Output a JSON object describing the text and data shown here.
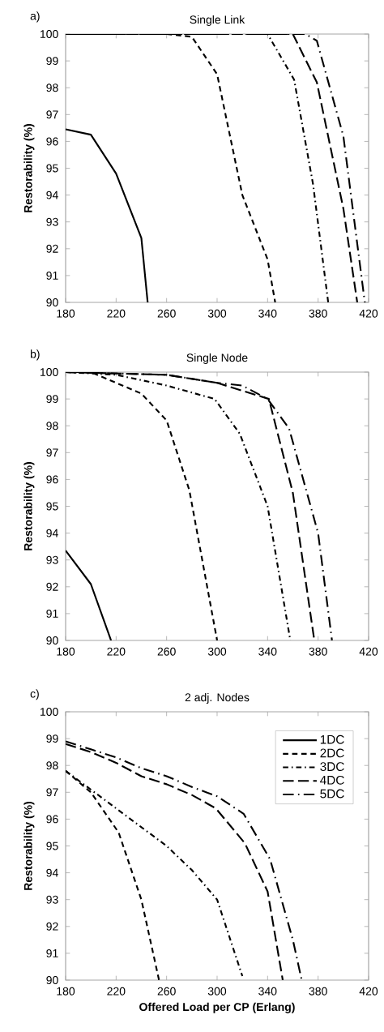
{
  "chart_data": [
    {
      "type": "line",
      "title": "Single Link",
      "ylabel": "Restorability (%)",
      "annotations": [
        "a)"
      ],
      "xlim": [
        180,
        420
      ],
      "ylim": [
        90,
        100
      ],
      "xticks": [
        180,
        220,
        260,
        300,
        340,
        380,
        420
      ],
      "yticks": [
        90,
        91,
        92,
        93,
        94,
        95,
        96,
        97,
        98,
        99,
        100
      ],
      "grid": false,
      "legend": false,
      "marker": "none",
      "series": [
        {
          "color": "#000000",
          "line_style": "solid",
          "x": [
            180,
            200,
            220,
            240,
            245
          ],
          "values": [
            96.45,
            96.25,
            94.8,
            92.4,
            90
          ]
        },
        {
          "color": "#000000",
          "line_style": "dashed",
          "x": [
            180,
            260,
            280,
            300,
            320,
            340,
            346
          ],
          "values": [
            100,
            100,
            99.9,
            98.5,
            94.0,
            91.6,
            90
          ]
        },
        {
          "color": "#000000",
          "line_style": "dashed",
          "x": [
            180,
            340,
            361,
            376,
            388
          ],
          "values": [
            100,
            100,
            98.3,
            94.4,
            90
          ]
        },
        {
          "color": "#000000",
          "line_style": "dashed",
          "x": [
            180,
            360,
            379,
            400,
            411
          ],
          "values": [
            100,
            100,
            98.2,
            93.5,
            90
          ]
        },
        {
          "color": "#000000",
          "line_style": "dashed",
          "x": [
            180,
            370,
            379,
            400,
            417
          ],
          "values": [
            100,
            100,
            99.75,
            96.2,
            90
          ]
        }
      ]
    },
    {
      "type": "line",
      "title": "Single Node",
      "ylabel": "Restorability (%)",
      "annotations": [
        "b)"
      ],
      "xlim": [
        180,
        420
      ],
      "ylim": [
        90,
        100
      ],
      "xticks": [
        180,
        220,
        260,
        300,
        340,
        380,
        420
      ],
      "yticks": [
        90,
        91,
        92,
        93,
        94,
        95,
        96,
        97,
        98,
        99,
        100
      ],
      "grid": false,
      "legend": false,
      "marker": "none",
      "series": [
        {
          "color": "#000000",
          "line_style": "solid",
          "x": [
            180,
            200,
            216
          ],
          "values": [
            93.35,
            92.1,
            90
          ]
        },
        {
          "color": "#000000",
          "line_style": "dashed",
          "x": [
            180,
            200,
            220,
            240,
            260,
            278,
            300
          ],
          "values": [
            100,
            100,
            99.6,
            99.2,
            98.2,
            95.6,
            90
          ]
        },
        {
          "color": "#000000",
          "line_style": "dashed",
          "x": [
            180,
            220,
            260,
            298,
            318,
            340,
            358
          ],
          "values": [
            100,
            99.9,
            99.5,
            99.0,
            97.7,
            95.0,
            90
          ]
        },
        {
          "color": "#000000",
          "line_style": "dashed",
          "x": [
            180,
            260,
            300,
            341,
            360,
            377
          ],
          "values": [
            100,
            99.9,
            99.6,
            99.0,
            95.5,
            90
          ]
        },
        {
          "color": "#000000",
          "line_style": "dashed",
          "x": [
            180,
            260,
            300,
            320,
            340,
            357,
            380,
            391
          ],
          "values": [
            100,
            99.9,
            99.6,
            99.5,
            99.0,
            97.9,
            94.0,
            90
          ]
        }
      ]
    },
    {
      "type": "line",
      "title": "2 adj. Nodes",
      "xlabel": "Offered Load per CP (Erlang)",
      "ylabel": "Restorability (%)",
      "annotations": [
        "c)"
      ],
      "xlim": [
        180,
        420
      ],
      "ylim": [
        90,
        100
      ],
      "xticks": [
        180,
        220,
        260,
        300,
        340,
        380,
        420
      ],
      "yticks": [
        90,
        91,
        92,
        93,
        94,
        95,
        96,
        97,
        98,
        99,
        100
      ],
      "grid": false,
      "legend": "top right",
      "marker": "none",
      "series": [
        {
          "name": "1DC",
          "color": "#000000",
          "line_style": "solid"
        },
        {
          "name": "2DC",
          "color": "#000000",
          "line_style": "dashed",
          "x": [
            180,
            200,
            222,
            240,
            254
          ],
          "values": [
            97.8,
            97.0,
            95.5,
            93.0,
            90
          ]
        },
        {
          "name": "3DC",
          "color": "#000000",
          "line_style": "dashed",
          "x": [
            180,
            200,
            220,
            240,
            260,
            280,
            300,
            320
          ],
          "values": [
            97.8,
            97.1,
            96.4,
            95.7,
            95.0,
            94.1,
            93.0,
            90.15
          ]
        },
        {
          "name": "4DC",
          "color": "#000000",
          "line_style": "dashed",
          "x": [
            180,
            200,
            220,
            240,
            260,
            280,
            299,
            322,
            340,
            352
          ],
          "values": [
            98.8,
            98.5,
            98.1,
            97.6,
            97.3,
            96.9,
            96.4,
            95.1,
            93.3,
            90
          ]
        },
        {
          "name": "5DC",
          "color": "#000000",
          "line_style": "dashed",
          "x": [
            180,
            200,
            220,
            240,
            260,
            280,
            300,
            321,
            342,
            360,
            367
          ],
          "values": [
            98.9,
            98.6,
            98.3,
            97.9,
            97.6,
            97.2,
            96.85,
            96.2,
            94.5,
            91.5,
            90
          ]
        }
      ]
    }
  ]
}
